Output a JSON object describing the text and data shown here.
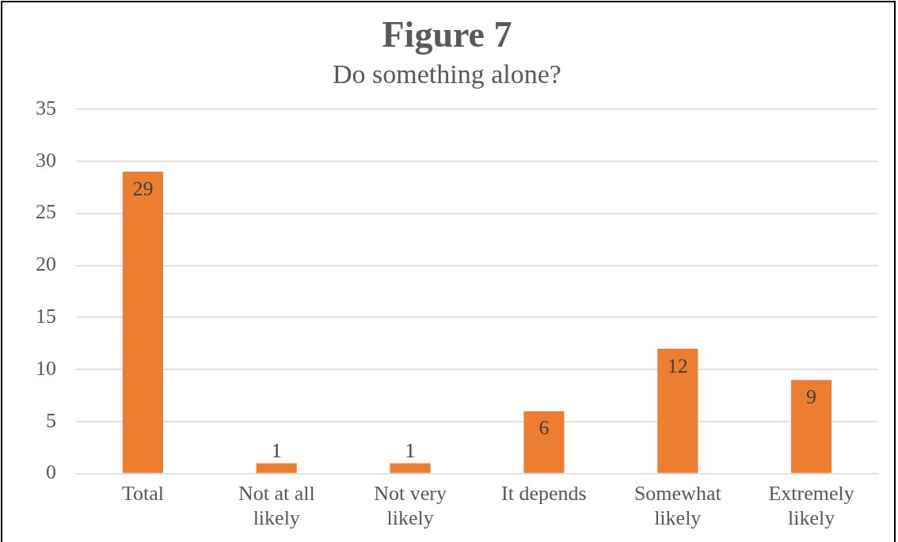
{
  "chart_data": {
    "type": "bar",
    "title": "Figure 7",
    "subtitle": "Do something alone?",
    "categories": [
      "Total",
      "Not at all likely",
      "Not very likely",
      "It depends",
      "Somewhat likely",
      "Extremely likely"
    ],
    "values": [
      29,
      1,
      1,
      6,
      12,
      9
    ],
    "color": "#ed7d31",
    "ylim": [
      0,
      35
    ],
    "yticks": [
      0,
      5,
      10,
      15,
      20,
      25,
      30,
      35
    ],
    "grid": "y",
    "legend": false,
    "data_labels": true
  }
}
